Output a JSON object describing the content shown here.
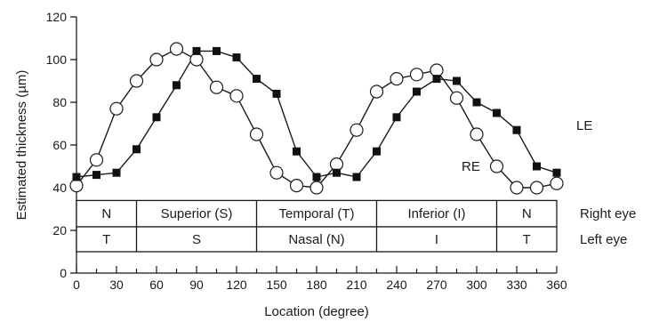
{
  "chart_data": {
    "type": "line",
    "xlabel": "Location (degree)",
    "ylabel": "Estimated thickness (µm)",
    "xlim": [
      0,
      360
    ],
    "ylim": [
      0,
      120
    ],
    "x_ticks": [
      0,
      30,
      60,
      90,
      120,
      150,
      180,
      210,
      240,
      270,
      300,
      330,
      360
    ],
    "y_ticks": [
      0,
      20,
      40,
      60,
      80,
      100,
      120
    ],
    "grid": false,
    "series": [
      {
        "name": "RE",
        "marker": "open-circle",
        "x": [
          0,
          15,
          30,
          45,
          60,
          75,
          90,
          105,
          120,
          135,
          150,
          165,
          180,
          195,
          210,
          225,
          240,
          255,
          270,
          285,
          300,
          315,
          330,
          345,
          360
        ],
        "y": [
          41,
          53,
          77,
          90,
          100,
          105,
          100,
          87,
          83,
          65,
          47,
          41,
          40,
          51,
          67,
          85,
          91,
          93,
          95,
          82,
          65,
          50,
          40,
          40,
          42
        ]
      },
      {
        "name": "LE",
        "marker": "filled-square",
        "x": [
          0,
          15,
          30,
          45,
          60,
          75,
          90,
          105,
          120,
          135,
          150,
          165,
          180,
          195,
          210,
          225,
          240,
          255,
          270,
          285,
          300,
          315,
          330,
          345,
          360
        ],
        "y": [
          45,
          46,
          47,
          58,
          73,
          88,
          104,
          104,
          101,
          91,
          84,
          57,
          45,
          47,
          45,
          57,
          73,
          85,
          91,
          90,
          80,
          75,
          67,
          50,
          47
        ]
      }
    ],
    "series_labels": [
      {
        "text": "LE",
        "series": "LE"
      },
      {
        "text": "RE",
        "series": "RE"
      }
    ],
    "region_table": {
      "y_top": 34,
      "y_mid": 21.7,
      "y_bottom": 10,
      "boundaries": [
        0,
        45,
        135,
        225,
        315,
        360
      ],
      "right_eye": [
        "N",
        "Superior (S)",
        "Temporal (T)",
        "Inferior (I)",
        "N"
      ],
      "left_eye": [
        "T",
        "S",
        "Nasal (N)",
        "I",
        "T"
      ],
      "row_labels": [
        "Right eye",
        "Left eye"
      ]
    }
  }
}
